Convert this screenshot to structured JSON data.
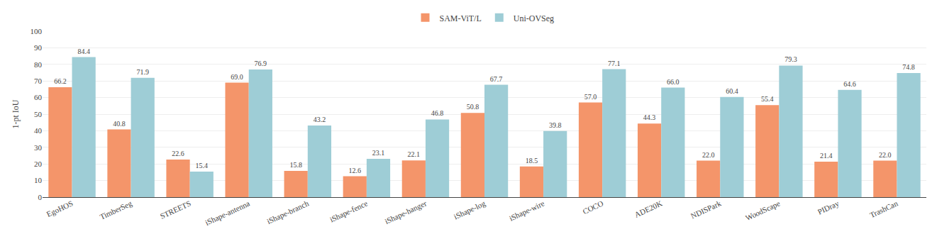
{
  "chart_data": {
    "type": "bar",
    "categories": [
      "EgoHOS",
      "TimberSeg",
      "STREETS",
      "iShape-antenna",
      "iShape-branch",
      "iShape-fence",
      "iShape-hanger",
      "iShape-log",
      "iShape-wire",
      "COCO",
      "ADE20K",
      "NDISPark",
      "WoodScape",
      "PIDray",
      "TrashCan"
    ],
    "series": [
      {
        "name": "SAM-ViT/L",
        "color": "#F4956A",
        "values": [
          66.2,
          40.8,
          22.6,
          69.0,
          15.8,
          12.6,
          22.1,
          50.8,
          18.5,
          57.0,
          44.3,
          22.0,
          55.4,
          21.4,
          22.0
        ],
        "value_labels": [
          "66.2",
          "40.8",
          "22.6",
          "69.0",
          "15.8",
          "12.6",
          "22.1",
          "50.8",
          "18.5",
          "57.0",
          "44.3",
          "22.0",
          "55.4",
          "21.4",
          "22.0"
        ]
      },
      {
        "name": "Uni-OVSeg",
        "color": "#9ECDD6",
        "values": [
          84.4,
          71.9,
          15.4,
          76.9,
          43.2,
          23.1,
          46.8,
          67.7,
          39.8,
          77.1,
          66.0,
          60.4,
          79.3,
          64.6,
          74.8
        ],
        "value_labels": [
          "84.4",
          "71.9",
          "15.4",
          "76.9",
          "43.2",
          "23.1",
          "46.8",
          "67.7",
          "39.8",
          "77.1",
          "66.0",
          "60.4",
          "79.3",
          "64.6",
          "74.8"
        ]
      }
    ],
    "ylabel": "1-pt IoU",
    "ylim": [
      0,
      100
    ],
    "yticks": [
      0,
      10,
      20,
      30,
      40,
      50,
      60,
      70,
      80,
      90,
      100
    ],
    "grid": true,
    "legend": "top",
    "data_labels": true
  }
}
